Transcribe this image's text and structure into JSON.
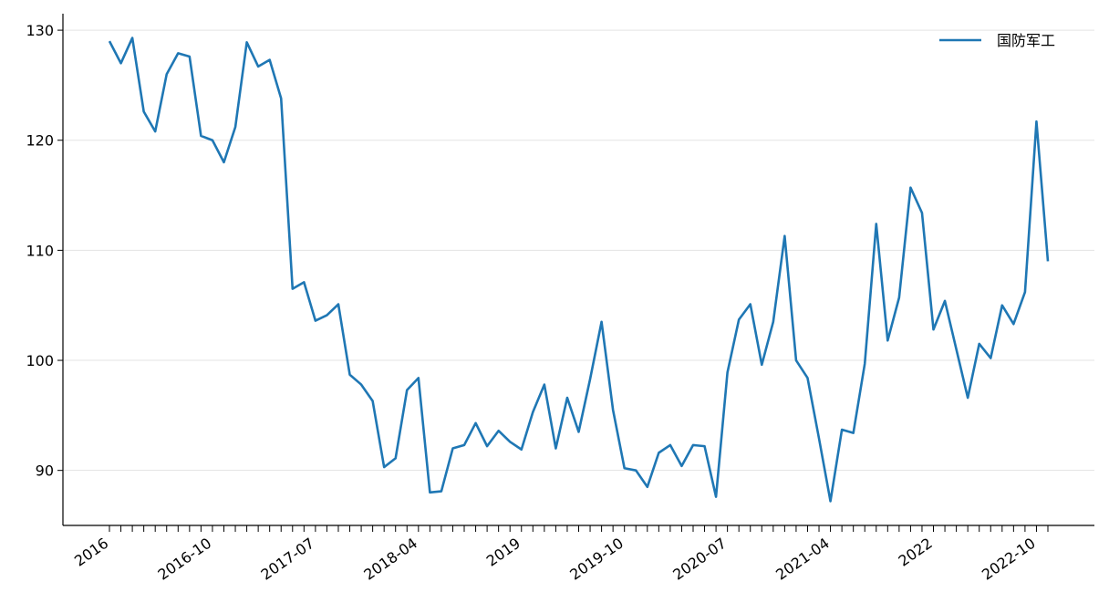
{
  "chart_data": {
    "type": "line",
    "categories": [
      "2016",
      null,
      null,
      null,
      null,
      null,
      null,
      null,
      null,
      "2016-10",
      null,
      null,
      null,
      null,
      null,
      null,
      null,
      null,
      "2017-07",
      null,
      null,
      null,
      null,
      null,
      null,
      null,
      null,
      "2018-04",
      null,
      null,
      null,
      null,
      null,
      null,
      null,
      null,
      "2019",
      null,
      null,
      null,
      null,
      null,
      null,
      null,
      null,
      "2019-10",
      null,
      null,
      null,
      null,
      null,
      null,
      null,
      null,
      "2020-07",
      null,
      null,
      null,
      null,
      null,
      null,
      null,
      null,
      "2021-04",
      null,
      null,
      null,
      null,
      null,
      null,
      null,
      null,
      "2022",
      null,
      null,
      null,
      null,
      null,
      null,
      null,
      null,
      "2022-10",
      null
    ],
    "series": [
      {
        "name": "国防军工",
        "color": "#1f77b4",
        "values": [
          129.0,
          127.0,
          129.3,
          122.6,
          120.8,
          126.0,
          127.9,
          127.6,
          120.4,
          120.0,
          118.0,
          121.2,
          128.9,
          126.7,
          127.3,
          123.8,
          106.5,
          107.1,
          103.6,
          104.1,
          105.1,
          98.7,
          97.8,
          96.3,
          90.3,
          91.1,
          97.3,
          98.4,
          88.0,
          88.1,
          92.0,
          92.3,
          94.3,
          92.2,
          93.6,
          92.6,
          91.9,
          95.3,
          97.8,
          92.0,
          96.6,
          93.5,
          98.3,
          103.5,
          95.5,
          90.2,
          90.0,
          88.5,
          91.6,
          92.3,
          90.4,
          92.3,
          92.2,
          87.6,
          98.9,
          103.7,
          105.1,
          99.6,
          103.5,
          111.3,
          100.0,
          98.4,
          92.9,
          87.2,
          93.7,
          93.4,
          99.7,
          112.4,
          101.8,
          105.7,
          115.7,
          113.4,
          102.8,
          105.4,
          101.0,
          96.6,
          101.5,
          100.2,
          105.0,
          103.3,
          106.2,
          121.7,
          109.0
        ]
      }
    ],
    "ylim": [
      85,
      131.5
    ],
    "yticks": [
      90,
      100,
      110,
      120,
      130
    ],
    "grid": true,
    "legend": "upper right"
  }
}
